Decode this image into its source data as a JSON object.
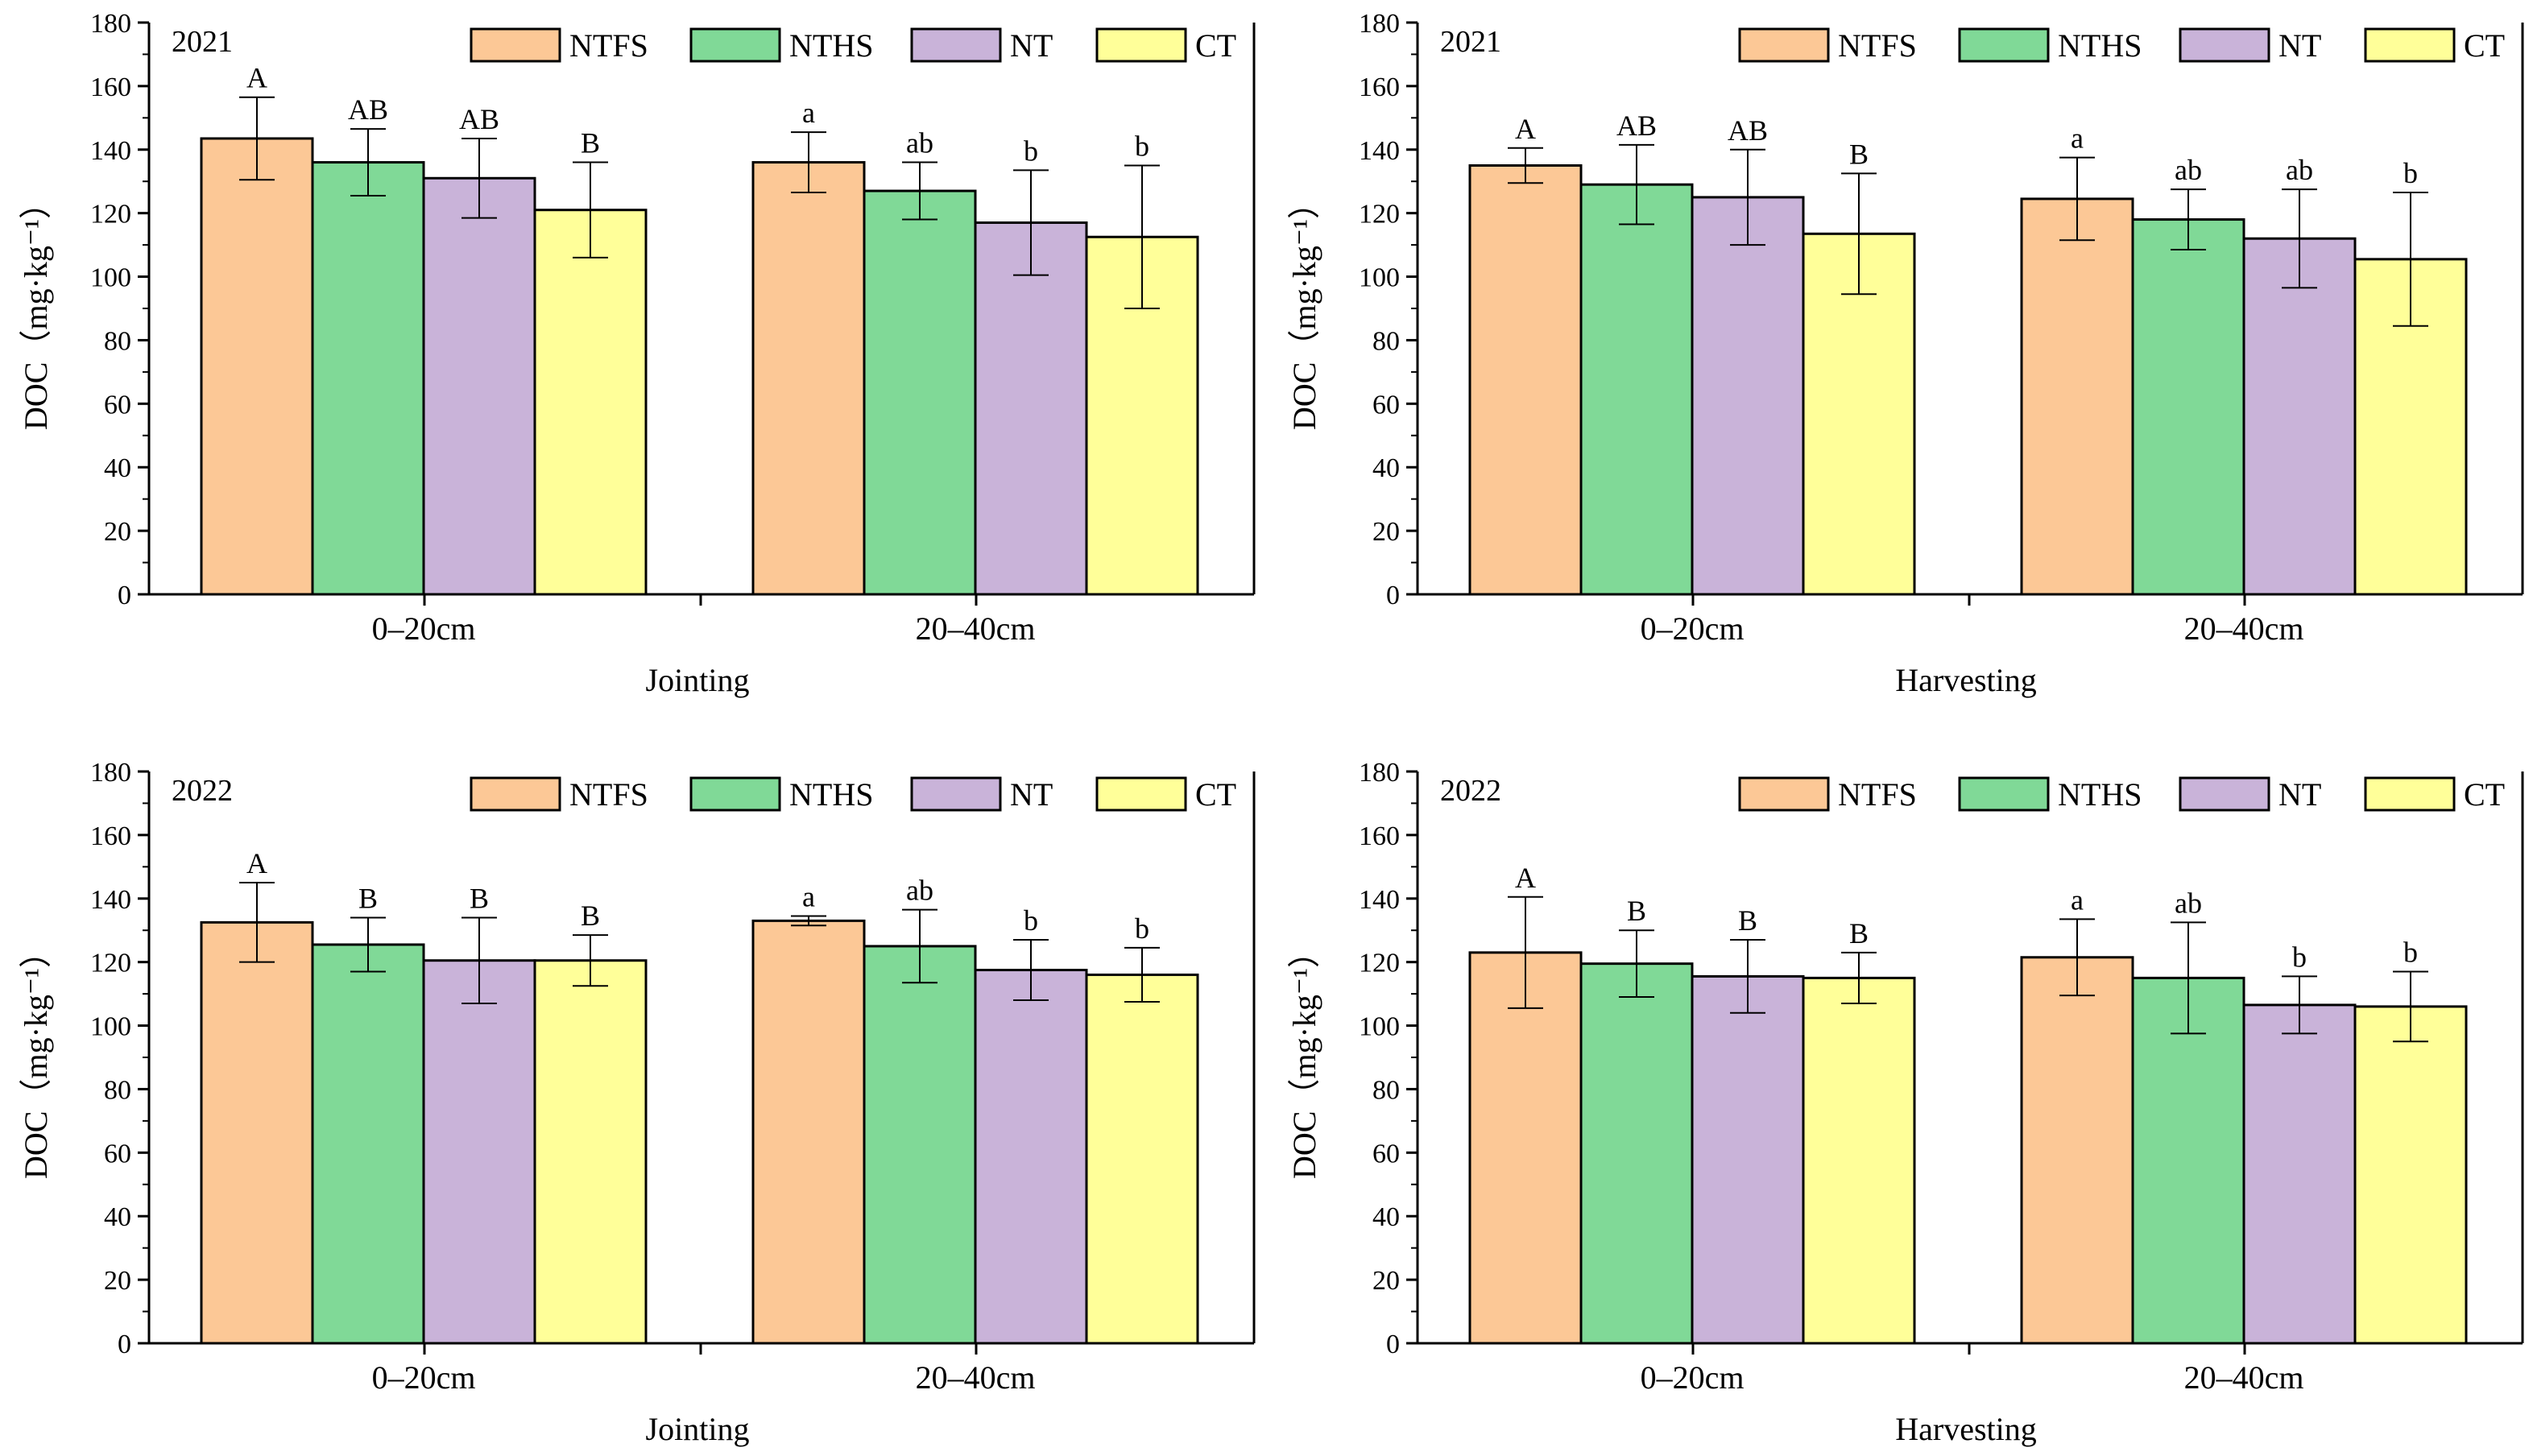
{
  "figure": {
    "series_colors": {
      "NTFS": "#fcc896",
      "NTHS": "#80d997",
      "NT": "#c9b3d9",
      "CT": "#ffff99"
    }
  },
  "chart_data": [
    {
      "type": "bar",
      "year_label": "2021",
      "xlabel": "Jointing",
      "ylabel": "DOC（mg·kg⁻¹）",
      "ylim": [
        0,
        180
      ],
      "yticks": [
        "0",
        "20",
        "40",
        "60",
        "80",
        "100",
        "120",
        "140",
        "160",
        "180"
      ],
      "categories": [
        "0–20cm",
        "20–40cm"
      ],
      "legend": [
        "NTFS",
        "NTHS",
        "NT",
        "CT"
      ],
      "series": [
        {
          "name": "NTFS",
          "values": [
            143.5,
            136
          ],
          "errors": [
            13,
            9.5
          ],
          "labels": [
            "A",
            "a"
          ]
        },
        {
          "name": "NTHS",
          "values": [
            136,
            127
          ],
          "errors": [
            10.5,
            9
          ],
          "labels": [
            "AB",
            "ab"
          ]
        },
        {
          "name": "NT",
          "values": [
            131,
            117
          ],
          "errors": [
            12.5,
            16.5
          ],
          "labels": [
            "AB",
            "b"
          ]
        },
        {
          "name": "CT",
          "values": [
            121,
            112.5
          ],
          "errors": [
            15,
            22.5
          ],
          "labels": [
            "B",
            "b"
          ]
        }
      ]
    },
    {
      "type": "bar",
      "year_label": "2021",
      "xlabel": "Harvesting",
      "ylabel": "DOC（mg·kg⁻¹）",
      "ylim": [
        0,
        180
      ],
      "yticks": [
        "0",
        "20",
        "40",
        "60",
        "80",
        "100",
        "120",
        "140",
        "160",
        "180"
      ],
      "categories": [
        "0–20cm",
        "20–40cm"
      ],
      "legend": [
        "NTFS",
        "NTHS",
        "NT",
        "CT"
      ],
      "series": [
        {
          "name": "NTFS",
          "values": [
            135,
            124.5
          ],
          "errors": [
            5.5,
            13
          ],
          "labels": [
            "A",
            "a"
          ]
        },
        {
          "name": "NTHS",
          "values": [
            129,
            118
          ],
          "errors": [
            12.5,
            9.5
          ],
          "labels": [
            "AB",
            "ab"
          ]
        },
        {
          "name": "NT",
          "values": [
            125,
            112
          ],
          "errors": [
            15,
            15.5
          ],
          "labels": [
            "AB",
            "ab"
          ]
        },
        {
          "name": "CT",
          "values": [
            113.5,
            105.5
          ],
          "errors": [
            19,
            21
          ],
          "labels": [
            "B",
            "b"
          ]
        }
      ]
    },
    {
      "type": "bar",
      "year_label": "2022",
      "xlabel": "Jointing",
      "ylabel": "DOC（mg·kg⁻¹）",
      "ylim": [
        0,
        180
      ],
      "yticks": [
        "0",
        "20",
        "40",
        "60",
        "80",
        "100",
        "120",
        "140",
        "160",
        "180"
      ],
      "categories": [
        "0–20cm",
        "20–40cm"
      ],
      "legend": [
        "NTFS",
        "NTHS",
        "NT",
        "CT"
      ],
      "series": [
        {
          "name": "NTFS",
          "values": [
            132.5,
            133
          ],
          "errors": [
            12.5,
            1.5
          ],
          "labels": [
            "A",
            "a"
          ]
        },
        {
          "name": "NTHS",
          "values": [
            125.5,
            125
          ],
          "errors": [
            8.5,
            11.5
          ],
          "labels": [
            "B",
            "ab"
          ]
        },
        {
          "name": "NT",
          "values": [
            120.5,
            117.5
          ],
          "errors": [
            13.5,
            9.5
          ],
          "labels": [
            "B",
            "b"
          ]
        },
        {
          "name": "CT",
          "values": [
            120.5,
            116
          ],
          "errors": [
            8,
            8.5
          ],
          "labels": [
            "B",
            "b"
          ]
        }
      ]
    },
    {
      "type": "bar",
      "year_label": "2022",
      "xlabel": "Harvesting",
      "ylabel": "DOC（mg·kg⁻¹）",
      "ylim": [
        0,
        180
      ],
      "yticks": [
        "0",
        "20",
        "40",
        "60",
        "80",
        "100",
        "120",
        "140",
        "160",
        "180"
      ],
      "categories": [
        "0–20cm",
        "20–40cm"
      ],
      "legend": [
        "NTFS",
        "NTHS",
        "NT",
        "CT"
      ],
      "series": [
        {
          "name": "NTFS",
          "values": [
            123,
            121.5
          ],
          "errors": [
            17.5,
            12
          ],
          "labels": [
            "A",
            "a"
          ]
        },
        {
          "name": "NTHS",
          "values": [
            119.5,
            115
          ],
          "errors": [
            10.5,
            17.5
          ],
          "labels": [
            "B",
            "ab"
          ]
        },
        {
          "name": "NT",
          "values": [
            115.5,
            106.5
          ],
          "errors": [
            11.5,
            9
          ],
          "labels": [
            "B",
            "b"
          ]
        },
        {
          "name": "CT",
          "values": [
            115,
            106
          ],
          "errors": [
            8,
            11
          ],
          "labels": [
            "B",
            "b"
          ]
        }
      ]
    }
  ]
}
